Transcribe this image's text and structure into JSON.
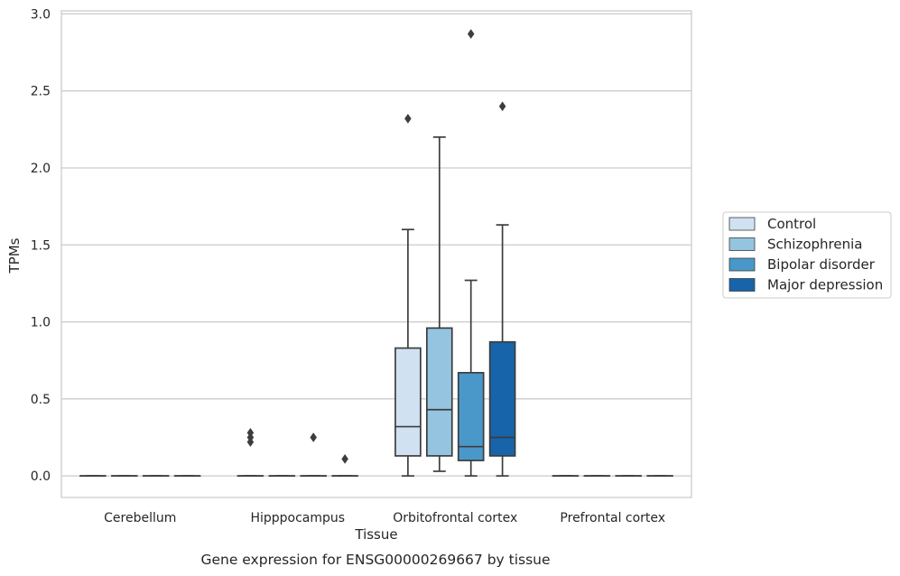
{
  "chart_data": {
    "type": "box",
    "xlabel": "Tissue",
    "ylabel": "TPMs",
    "caption": "Gene expression for ENSG00000269667 by tissue",
    "ylim": [
      -0.14,
      3.02
    ],
    "yticks": [
      0.0,
      0.5,
      1.0,
      1.5,
      2.0,
      2.5,
      3.0
    ],
    "ytick_labels": [
      "0.0",
      "0.5",
      "1.0",
      "1.5",
      "2.0",
      "2.5",
      "3.0"
    ],
    "grid": "horizontal",
    "legend_position": "right",
    "categories": [
      "Cerebellum",
      "Hipppocampus",
      "Orbitofrontal cortex",
      "Prefrontal cortex"
    ],
    "series": [
      {
        "name": "Control",
        "color": "#d0e1f2",
        "boxes": [
          {
            "min": 0,
            "q1": 0,
            "median": 0,
            "q3": 0,
            "max": 0,
            "outliers": []
          },
          {
            "min": 0,
            "q1": 0,
            "median": 0,
            "q3": 0,
            "max": 0,
            "outliers": [
              0.22,
              0.25,
              0.28
            ]
          },
          {
            "min": 0,
            "q1": 0.13,
            "median": 0.32,
            "q3": 0.83,
            "max": 1.6,
            "outliers": [
              2.32
            ]
          },
          {
            "min": 0,
            "q1": 0,
            "median": 0,
            "q3": 0,
            "max": 0,
            "outliers": []
          }
        ]
      },
      {
        "name": "Schizophrenia",
        "color": "#94c4df",
        "boxes": [
          {
            "min": 0,
            "q1": 0,
            "median": 0,
            "q3": 0,
            "max": 0,
            "outliers": []
          },
          {
            "min": 0,
            "q1": 0,
            "median": 0,
            "q3": 0,
            "max": 0,
            "outliers": []
          },
          {
            "min": 0.03,
            "q1": 0.13,
            "median": 0.43,
            "q3": 0.96,
            "max": 2.2,
            "outliers": []
          },
          {
            "min": 0,
            "q1": 0,
            "median": 0,
            "q3": 0,
            "max": 0,
            "outliers": []
          }
        ]
      },
      {
        "name": "Bipolar disorder",
        "color": "#4a98c9",
        "boxes": [
          {
            "min": 0,
            "q1": 0,
            "median": 0,
            "q3": 0,
            "max": 0,
            "outliers": []
          },
          {
            "min": 0,
            "q1": 0,
            "median": 0,
            "q3": 0,
            "max": 0,
            "outliers": [
              0.25
            ]
          },
          {
            "min": 0,
            "q1": 0.1,
            "median": 0.19,
            "q3": 0.67,
            "max": 1.27,
            "outliers": [
              2.87
            ]
          },
          {
            "min": 0,
            "q1": 0,
            "median": 0,
            "q3": 0,
            "max": 0,
            "outliers": []
          }
        ]
      },
      {
        "name": "Major depression",
        "color": "#1764ab",
        "boxes": [
          {
            "min": 0,
            "q1": 0,
            "median": 0,
            "q3": 0,
            "max": 0,
            "outliers": []
          },
          {
            "min": 0,
            "q1": 0,
            "median": 0,
            "q3": 0,
            "max": 0,
            "outliers": [
              0.11
            ]
          },
          {
            "min": 0,
            "q1": 0.13,
            "median": 0.25,
            "q3": 0.87,
            "max": 1.63,
            "outliers": [
              2.4
            ]
          },
          {
            "min": 0,
            "q1": 0,
            "median": 0,
            "q3": 0,
            "max": 0,
            "outliers": []
          }
        ]
      }
    ]
  }
}
